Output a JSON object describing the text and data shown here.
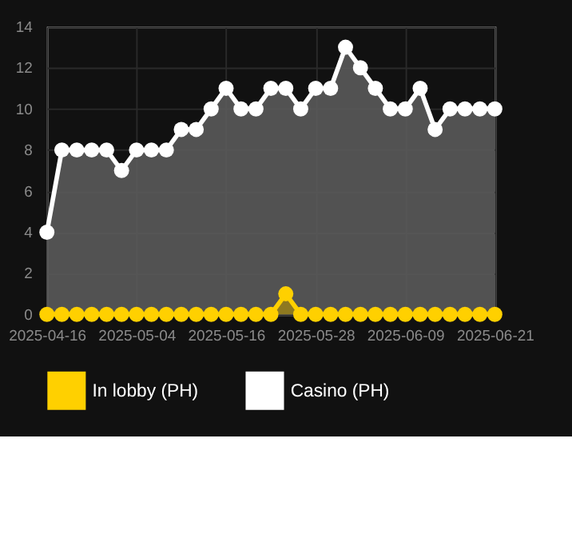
{
  "chart_data": {
    "type": "area",
    "categories": [
      "2025-04-16",
      null,
      null,
      null,
      null,
      null,
      "2025-05-04",
      null,
      null,
      null,
      null,
      null,
      "2025-05-16",
      null,
      null,
      null,
      null,
      null,
      "2025-05-28",
      null,
      null,
      null,
      null,
      null,
      "2025-06-09",
      null,
      null,
      null,
      null,
      null,
      "2025-06-21"
    ],
    "series": [
      {
        "name": "In lobby (PH)",
        "color": "#ffd000",
        "values": [
          0,
          0,
          0,
          0,
          0,
          0,
          0,
          0,
          0,
          0,
          0,
          0,
          0,
          0,
          0,
          0,
          1,
          0,
          0,
          0,
          0,
          0,
          0,
          0,
          0,
          0,
          0,
          0,
          0,
          0,
          0
        ]
      },
      {
        "name": "Casino (PH)",
        "color": "#ffffff",
        "values": [
          4,
          8,
          8,
          8,
          8,
          7,
          8,
          8,
          8,
          9,
          9,
          10,
          11,
          10,
          10,
          11,
          11,
          10,
          11,
          11,
          13,
          12,
          11,
          10,
          10,
          11,
          9,
          10,
          10,
          10,
          10
        ]
      }
    ],
    "ylim": [
      0,
      14
    ],
    "yticks": [
      0,
      2,
      4,
      6,
      8,
      10,
      12,
      14
    ],
    "grid": true,
    "legend": "bottom",
    "marker": "circle",
    "line_style": "solid"
  }
}
